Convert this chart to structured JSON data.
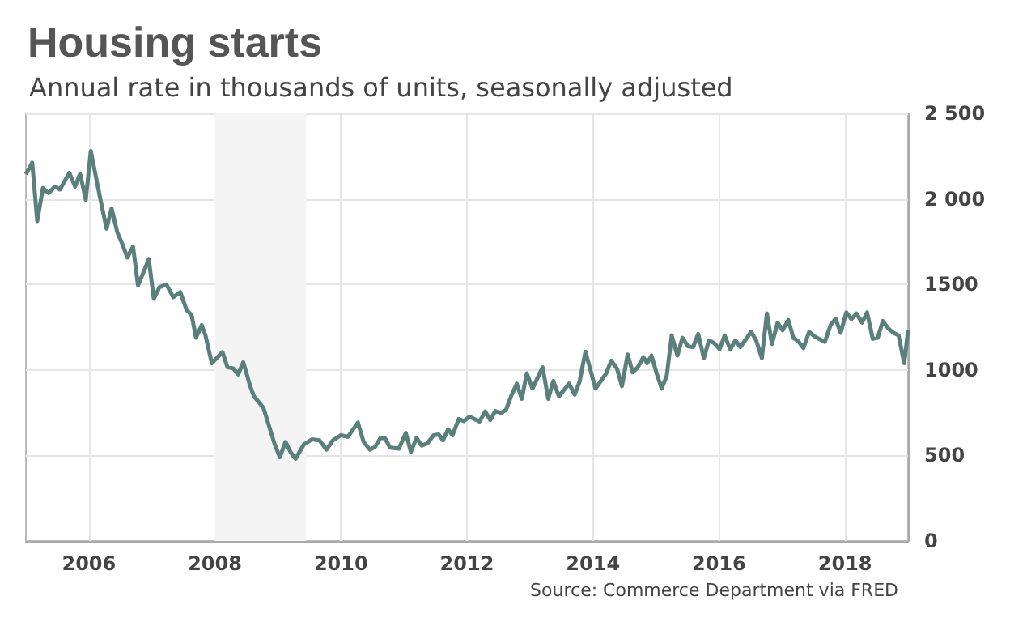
{
  "chart_data": {
    "type": "line",
    "title": "Housing starts",
    "subtitle": "Annual rate in thousands of units, seasonally adjusted",
    "annotations": [
      "Source: Commerce Department via FRED"
    ],
    "x": [
      2005.0,
      2005.1,
      2005.18,
      2005.27,
      2005.36,
      2005.46,
      2005.54,
      2005.69,
      2005.78,
      2005.86,
      2005.95,
      2006.03,
      2006.17,
      2006.28,
      2006.36,
      2006.45,
      2006.53,
      2006.61,
      2006.7,
      2006.78,
      2006.95,
      2007.03,
      2007.12,
      2007.23,
      2007.34,
      2007.45,
      2007.55,
      2007.63,
      2007.7,
      2007.79,
      2007.85,
      2007.95,
      2008.12,
      2008.2,
      2008.29,
      2008.37,
      2008.45,
      2008.56,
      2008.62,
      2008.77,
      2008.85,
      2008.95,
      2009.03,
      2009.12,
      2009.2,
      2009.28,
      2009.41,
      2009.54,
      2009.66,
      2009.77,
      2009.87,
      2010.0,
      2010.11,
      2010.27,
      2010.36,
      2010.46,
      2010.54,
      2010.63,
      2010.7,
      2010.78,
      2010.92,
      2011.03,
      2011.11,
      2011.2,
      2011.28,
      2011.37,
      2011.47,
      2011.55,
      2011.62,
      2011.7,
      2011.77,
      2011.87,
      2011.95,
      2012.04,
      2012.2,
      2012.29,
      2012.37,
      2012.45,
      2012.54,
      2012.62,
      2012.7,
      2012.79,
      2012.87,
      2012.95,
      2013.04,
      2013.2,
      2013.29,
      2013.37,
      2013.46,
      2013.62,
      2013.71,
      2013.79,
      2013.88,
      2014.04,
      2014.21,
      2014.29,
      2014.38,
      2014.46,
      2014.55,
      2014.63,
      2014.71,
      2014.8,
      2014.86,
      2014.93,
      2015.01,
      2015.09,
      2015.17,
      2015.25,
      2015.34,
      2015.42,
      2015.51,
      2015.59,
      2015.67,
      2015.76,
      2015.84,
      2015.92,
      2016.01,
      2016.09,
      2016.18,
      2016.26,
      2016.34,
      2016.51,
      2016.59,
      2016.68,
      2016.76,
      2016.84,
      2016.93,
      2017.01,
      2017.1,
      2017.18,
      2017.26,
      2017.34,
      2017.43,
      2017.51,
      2017.68,
      2017.77,
      2017.85,
      2017.93,
      2018.02,
      2018.1,
      2018.18,
      2018.27,
      2018.35,
      2018.44,
      2018.52,
      2018.6,
      2018.69,
      2018.77,
      2018.85,
      2018.94,
      2019.0
    ],
    "series": [
      {
        "color": "#5b7f7b",
        "values": [
          2144,
          2212,
          1870,
          2063,
          2034,
          2072,
          2055,
          2152,
          2072,
          2147,
          1995,
          2280,
          2019,
          1826,
          1945,
          1805,
          1737,
          1657,
          1722,
          1493,
          1648,
          1416,
          1484,
          1499,
          1425,
          1455,
          1351,
          1321,
          1188,
          1262,
          1202,
          1039,
          1104,
          1015,
          1009,
          974,
          1045,
          905,
          846,
          778,
          683,
          564,
          490,
          579,
          520,
          481,
          564,
          594,
          588,
          534,
          588,
          618,
          609,
          692,
          579,
          534,
          549,
          603,
          600,
          546,
          540,
          632,
          520,
          603,
          558,
          570,
          618,
          623,
          588,
          653,
          618,
          713,
          701,
          727,
          698,
          757,
          707,
          760,
          748,
          766,
          846,
          920,
          831,
          980,
          891,
          1015,
          831,
          935,
          846,
          920,
          855,
          935,
          1107,
          891,
          980,
          1054,
          1009,
          905,
          1090,
          986,
          1015,
          1075,
          1039,
          1084,
          980,
          891,
          965,
          1202,
          1084,
          1188,
          1137,
          1134,
          1211,
          1069,
          1173,
          1158,
          1122,
          1202,
          1119,
          1173,
          1134,
          1223,
          1173,
          1069,
          1330,
          1152,
          1277,
          1232,
          1292,
          1188,
          1167,
          1128,
          1223,
          1197,
          1164,
          1262,
          1300,
          1217,
          1336,
          1297,
          1330,
          1277,
          1336,
          1182,
          1188,
          1286,
          1241,
          1217,
          1202,
          1039,
          1232
        ]
      }
    ],
    "xlim": [
      2005,
      2019
    ],
    "xticks": [
      2006,
      2008,
      2010,
      2012,
      2014,
      2016,
      2018
    ],
    "ylim": [
      0,
      2500
    ],
    "yticks": [
      0,
      500,
      1000,
      1500,
      {
        "value": 2000,
        "label": "2 000"
      },
      {
        "value": 2500,
        "label": "2 500"
      }
    ],
    "bands": [
      {
        "axis": "x",
        "from": 2008.0,
        "to": 2009.45,
        "color": "#f4f4f4"
      }
    ],
    "grid": true,
    "marker": "none",
    "line_style": "solid"
  }
}
